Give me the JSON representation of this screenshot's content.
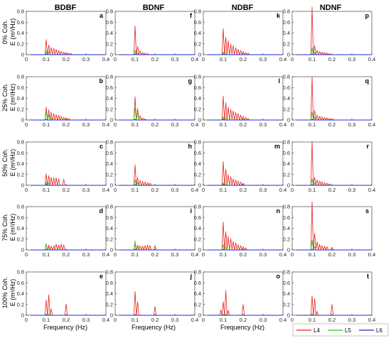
{
  "figure": {
    "columns": [
      "BDBF",
      "BDNF",
      "NDBF",
      "NDNF"
    ],
    "rows": [
      "0% Coh.",
      "25% Coh.",
      "50% Coh.",
      "75% Coh.",
      "100% Coh."
    ],
    "ylabel": "E (m²/Hz)",
    "xlabel": "Frequency (Hz)",
    "legend": [
      {
        "name": "L4",
        "color": "#e8231b"
      },
      {
        "name": "L5",
        "color": "#2ecc1f"
      },
      {
        "name": "L6",
        "color": "#1f2bd1"
      }
    ]
  },
  "chart_data": {
    "type": "line",
    "panel_grid": {
      "rows": 5,
      "cols": 4
    },
    "xlim": [
      0,
      0.4
    ],
    "ylim": [
      0,
      0.8
    ],
    "xticks": [
      "0",
      "0.1",
      "0.2",
      "0.3",
      "0.4"
    ],
    "yticks": [
      "0",
      "0.2",
      "0.4",
      "0.6",
      "0.8"
    ],
    "series_names": [
      "L4",
      "L5",
      "L6"
    ],
    "panels": [
      {
        "letter": "a",
        "row": 0,
        "col": 0,
        "L4": [
          [
            0.1,
            0.28
          ],
          [
            0.113,
            0.18
          ],
          [
            0.125,
            0.13
          ],
          [
            0.138,
            0.12
          ],
          [
            0.15,
            0.1
          ],
          [
            0.163,
            0.08
          ],
          [
            0.175,
            0.06
          ],
          [
            0.188,
            0.05
          ],
          [
            0.2,
            0.04
          ],
          [
            0.213,
            0.03
          ],
          [
            0.225,
            0.02
          ]
        ],
        "L5": [
          [
            0.1,
            0.07
          ],
          [
            0.113,
            0.05
          ]
        ],
        "L6": [
          [
            0.1,
            0.01
          ]
        ]
      },
      {
        "letter": "f",
        "row": 0,
        "col": 1,
        "L4": [
          [
            0.1,
            0.53
          ],
          [
            0.113,
            0.15
          ],
          [
            0.125,
            0.07
          ],
          [
            0.138,
            0.04
          ],
          [
            0.15,
            0.03
          ],
          [
            0.163,
            0.02
          ]
        ],
        "L5": [
          [
            0.1,
            0.08
          ],
          [
            0.113,
            0.03
          ]
        ],
        "L6": [
          [
            0.1,
            0.01
          ]
        ]
      },
      {
        "letter": "k",
        "row": 0,
        "col": 2,
        "L4": [
          [
            0.1,
            0.48
          ],
          [
            0.113,
            0.33
          ],
          [
            0.125,
            0.26
          ],
          [
            0.138,
            0.2
          ],
          [
            0.15,
            0.17
          ],
          [
            0.163,
            0.13
          ],
          [
            0.175,
            0.1
          ],
          [
            0.188,
            0.08
          ],
          [
            0.2,
            0.06
          ],
          [
            0.213,
            0.04
          ],
          [
            0.225,
            0.03
          ]
        ],
        "L5": [
          [
            0.1,
            0.05
          ],
          [
            0.113,
            0.04
          ]
        ],
        "L6": [
          [
            0.1,
            0.01
          ]
        ]
      },
      {
        "letter": "p",
        "row": 0,
        "col": 3,
        "L4": [
          [
            0.1,
            0.88
          ],
          [
            0.113,
            0.17
          ],
          [
            0.125,
            0.08
          ],
          [
            0.138,
            0.06
          ],
          [
            0.15,
            0.05
          ],
          [
            0.163,
            0.04
          ],
          [
            0.175,
            0.03
          ],
          [
            0.188,
            0.02
          ]
        ],
        "L5": [
          [
            0.1,
            0.13
          ],
          [
            0.113,
            0.04
          ]
        ],
        "L6": [
          [
            0.1,
            0.01
          ]
        ]
      },
      {
        "letter": "b",
        "row": 1,
        "col": 0,
        "L4": [
          [
            0.1,
            0.24
          ],
          [
            0.113,
            0.19
          ],
          [
            0.125,
            0.14
          ],
          [
            0.138,
            0.12
          ],
          [
            0.15,
            0.1
          ],
          [
            0.163,
            0.09
          ],
          [
            0.175,
            0.07
          ],
          [
            0.188,
            0.05
          ],
          [
            0.2,
            0.04
          ],
          [
            0.213,
            0.03
          ]
        ],
        "L5": [
          [
            0.1,
            0.15
          ],
          [
            0.113,
            0.1
          ],
          [
            0.125,
            0.04
          ]
        ],
        "L6": [
          [
            0.1,
            0.01
          ]
        ]
      },
      {
        "letter": "g",
        "row": 1,
        "col": 1,
        "L4": [
          [
            0.1,
            0.43
          ],
          [
            0.113,
            0.21
          ],
          [
            0.125,
            0.08
          ],
          [
            0.138,
            0.04
          ],
          [
            0.15,
            0.02
          ]
        ],
        "L5": [
          [
            0.1,
            0.22
          ],
          [
            0.113,
            0.13
          ]
        ],
        "L6": [
          [
            0.1,
            0.01
          ]
        ]
      },
      {
        "letter": "l",
        "row": 1,
        "col": 2,
        "L4": [
          [
            0.1,
            0.44
          ],
          [
            0.113,
            0.32
          ],
          [
            0.125,
            0.24
          ],
          [
            0.138,
            0.2
          ],
          [
            0.15,
            0.17
          ],
          [
            0.163,
            0.14
          ],
          [
            0.175,
            0.12
          ],
          [
            0.188,
            0.09
          ],
          [
            0.2,
            0.07
          ],
          [
            0.213,
            0.05
          ],
          [
            0.225,
            0.03
          ]
        ],
        "L5": [
          [
            0.1,
            0.06
          ],
          [
            0.113,
            0.04
          ]
        ],
        "L6": [
          [
            0.1,
            0.01
          ]
        ]
      },
      {
        "letter": "q",
        "row": 1,
        "col": 3,
        "L4": [
          [
            0.1,
            0.8
          ],
          [
            0.113,
            0.18
          ],
          [
            0.125,
            0.09
          ],
          [
            0.138,
            0.07
          ],
          [
            0.15,
            0.06
          ],
          [
            0.163,
            0.05
          ],
          [
            0.175,
            0.04
          ],
          [
            0.188,
            0.03
          ],
          [
            0.2,
            0.02
          ]
        ],
        "L5": [
          [
            0.1,
            0.15
          ],
          [
            0.113,
            0.05
          ]
        ],
        "L6": [
          [
            0.1,
            0.01
          ]
        ]
      },
      {
        "letter": "c",
        "row": 2,
        "col": 0,
        "L4": [
          [
            0.1,
            0.21
          ],
          [
            0.113,
            0.18
          ],
          [
            0.125,
            0.15
          ],
          [
            0.138,
            0.14
          ],
          [
            0.15,
            0.14
          ],
          [
            0.163,
            0.12
          ],
          [
            0.188,
            0.11
          ]
        ],
        "L5": [
          [
            0.1,
            0.06
          ],
          [
            0.113,
            0.04
          ]
        ],
        "L6": [
          [
            0.1,
            0.01
          ]
        ]
      },
      {
        "letter": "h",
        "row": 2,
        "col": 1,
        "L4": [
          [
            0.1,
            0.38
          ],
          [
            0.113,
            0.14
          ],
          [
            0.125,
            0.09
          ],
          [
            0.138,
            0.07
          ],
          [
            0.15,
            0.06
          ],
          [
            0.163,
            0.05
          ],
          [
            0.175,
            0.04
          ]
        ],
        "L5": [
          [
            0.1,
            0.1
          ],
          [
            0.113,
            0.05
          ]
        ],
        "L6": [
          [
            0.1,
            0.01
          ]
        ]
      },
      {
        "letter": "m",
        "row": 2,
        "col": 2,
        "L4": [
          [
            0.1,
            0.44
          ],
          [
            0.113,
            0.3
          ],
          [
            0.125,
            0.2
          ],
          [
            0.138,
            0.16
          ],
          [
            0.15,
            0.12
          ],
          [
            0.163,
            0.1
          ],
          [
            0.175,
            0.08
          ],
          [
            0.188,
            0.06
          ],
          [
            0.2,
            0.04
          ]
        ],
        "L5": [
          [
            0.1,
            0.05
          ],
          [
            0.113,
            0.03
          ]
        ],
        "L6": [
          [
            0.1,
            0.01
          ]
        ]
      },
      {
        "letter": "r",
        "row": 2,
        "col": 3,
        "L4": [
          [
            0.1,
            0.81
          ],
          [
            0.113,
            0.15
          ],
          [
            0.125,
            0.1
          ],
          [
            0.138,
            0.08
          ],
          [
            0.15,
            0.07
          ],
          [
            0.163,
            0.05
          ],
          [
            0.175,
            0.04
          ],
          [
            0.188,
            0.03
          ]
        ],
        "L5": [
          [
            0.1,
            0.12
          ],
          [
            0.113,
            0.04
          ]
        ],
        "L6": [
          [
            0.1,
            0.01
          ]
        ]
      },
      {
        "letter": "d",
        "row": 3,
        "col": 0,
        "L4": [
          [
            0.1,
            0.1
          ],
          [
            0.113,
            0.09
          ],
          [
            0.125,
            0.07
          ],
          [
            0.138,
            0.08
          ],
          [
            0.15,
            0.11
          ],
          [
            0.163,
            0.09
          ],
          [
            0.175,
            0.11
          ],
          [
            0.188,
            0.09
          ]
        ],
        "L5": [
          [
            0.1,
            0.12
          ],
          [
            0.113,
            0.05
          ]
        ],
        "L6": [
          [
            0.1,
            0.01
          ]
        ]
      },
      {
        "letter": "i",
        "row": 3,
        "col": 1,
        "L4": [
          [
            0.1,
            0.11
          ],
          [
            0.113,
            0.09
          ],
          [
            0.125,
            0.08
          ],
          [
            0.138,
            0.07
          ],
          [
            0.15,
            0.08
          ],
          [
            0.163,
            0.09
          ],
          [
            0.175,
            0.08
          ],
          [
            0.2,
            0.08
          ]
        ],
        "L5": [
          [
            0.1,
            0.17
          ],
          [
            0.113,
            0.05
          ]
        ],
        "L6": [
          [
            0.1,
            0.01
          ]
        ]
      },
      {
        "letter": "n",
        "row": 3,
        "col": 2,
        "L4": [
          [
            0.1,
            0.52
          ],
          [
            0.113,
            0.34
          ],
          [
            0.125,
            0.25
          ],
          [
            0.138,
            0.21
          ],
          [
            0.15,
            0.16
          ],
          [
            0.163,
            0.13
          ],
          [
            0.175,
            0.1
          ],
          [
            0.188,
            0.08
          ],
          [
            0.2,
            0.06
          ],
          [
            0.213,
            0.04
          ]
        ],
        "L5": [
          [
            0.1,
            0.1
          ],
          [
            0.113,
            0.05
          ]
        ],
        "L6": [
          [
            0.1,
            0.01
          ]
        ]
      },
      {
        "letter": "s",
        "row": 3,
        "col": 3,
        "L4": [
          [
            0.1,
            0.89
          ],
          [
            0.113,
            0.31
          ],
          [
            0.125,
            0.15
          ],
          [
            0.138,
            0.1
          ],
          [
            0.15,
            0.08
          ],
          [
            0.163,
            0.07
          ],
          [
            0.175,
            0.06
          ],
          [
            0.2,
            0.05
          ]
        ],
        "L5": [
          [
            0.1,
            0.18
          ],
          [
            0.113,
            0.06
          ]
        ],
        "L6": [
          [
            0.1,
            0.01
          ]
        ]
      },
      {
        "letter": "e",
        "row": 4,
        "col": 0,
        "L4": [
          [
            0.1,
            0.28
          ],
          [
            0.113,
            0.38
          ],
          [
            0.125,
            0.12
          ],
          [
            0.2,
            0.21
          ]
        ],
        "L5": [
          [
            0.113,
            0.02
          ]
        ],
        "L6": [
          [
            0.1,
            0.01
          ]
        ]
      },
      {
        "letter": "j",
        "row": 4,
        "col": 1,
        "L4": [
          [
            0.1,
            0.44
          ],
          [
            0.113,
            0.25
          ],
          [
            0.2,
            0.16
          ]
        ],
        "L5": [
          [
            0.1,
            0.01
          ]
        ],
        "L6": [
          [
            0.1,
            0.01
          ]
        ]
      },
      {
        "letter": "o",
        "row": 4,
        "col": 2,
        "L4": [
          [
            0.088,
            0.1
          ],
          [
            0.1,
            0.25
          ],
          [
            0.113,
            0.46
          ],
          [
            0.125,
            0.09
          ],
          [
            0.2,
            0.2
          ]
        ],
        "L5": [
          [
            0.113,
            0.02
          ]
        ],
        "L6": [
          [
            0.1,
            0.01
          ]
        ]
      },
      {
        "letter": "t",
        "row": 4,
        "col": 3,
        "L4": [
          [
            0.1,
            0.36
          ],
          [
            0.113,
            0.31
          ],
          [
            0.125,
            0.07
          ],
          [
            0.2,
            0.2
          ]
        ],
        "L5": [
          [
            0.1,
            0.02
          ]
        ],
        "L6": [
          [
            0.1,
            0.01
          ]
        ]
      }
    ]
  }
}
